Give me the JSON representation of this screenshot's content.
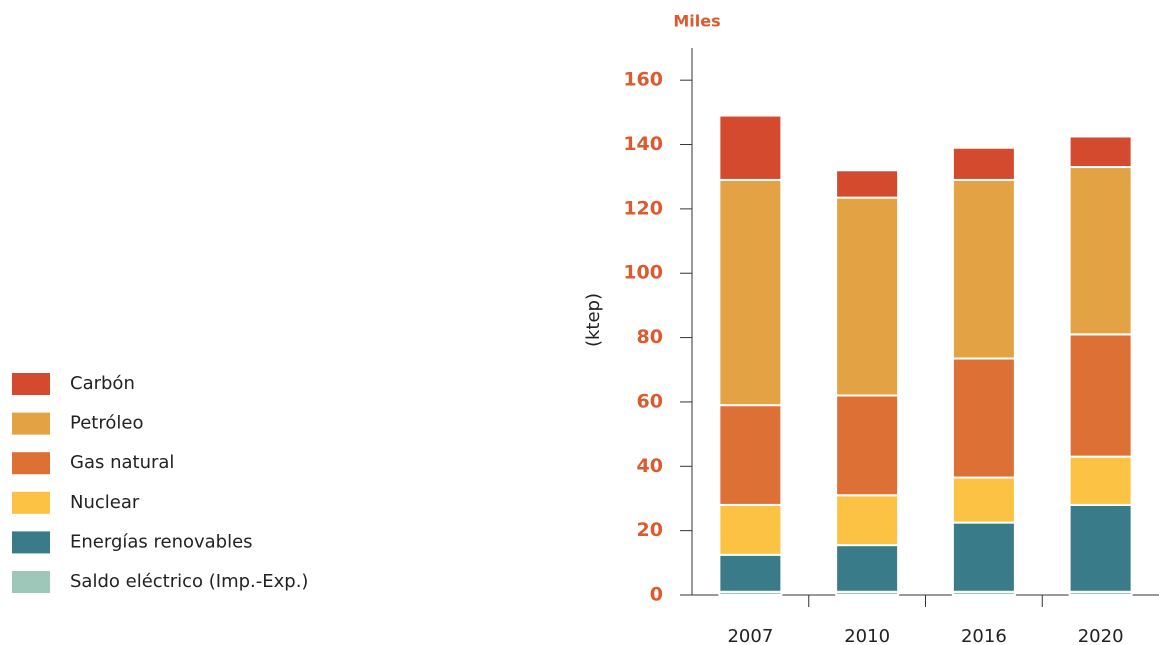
{
  "chart_data": {
    "type": "stacked_bar",
    "unit_label": "Miles",
    "ylabel": "(ktep)",
    "categories": [
      "2007",
      "2010",
      "2016",
      "2020"
    ],
    "series": [
      {
        "name": "Carbón",
        "color": "#d34a2e",
        "values": [
          20,
          8.5,
          10,
          9.5
        ]
      },
      {
        "name": "Petróleo",
        "color": "#e3a243",
        "values": [
          70,
          61.5,
          55.5,
          52
        ]
      },
      {
        "name": "Gas natural",
        "color": "#dd7034",
        "values": [
          31,
          31,
          37,
          38
        ]
      },
      {
        "name": "Nuclear",
        "color": "#fcc244",
        "values": [
          15.5,
          15.5,
          14,
          15
        ]
      },
      {
        "name": "Energías renovables",
        "color": "#3a7b8a",
        "values": [
          11.5,
          14.5,
          21.5,
          27
        ]
      },
      {
        "name": "Saldo eléctrico (Imp.-Exp.)",
        "color": "#9dc7b8",
        "values": [
          1,
          1,
          1,
          1
        ]
      }
    ],
    "ylim": [
      0,
      170
    ],
    "yticks": [
      0,
      20,
      40,
      60,
      80,
      100,
      120,
      140,
      160
    ]
  }
}
